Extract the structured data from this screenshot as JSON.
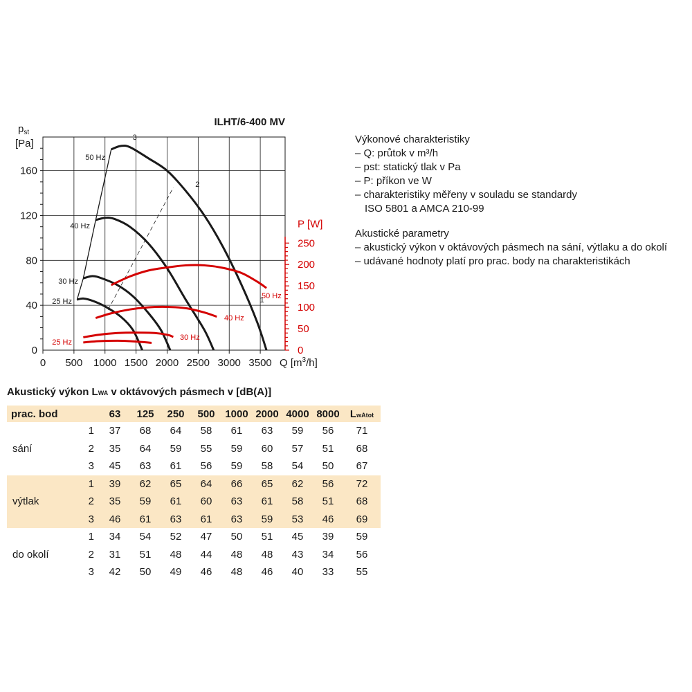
{
  "chart_data": {
    "type": "line",
    "title": "ILHT/6-400 MV",
    "y_left": {
      "label_main": "p",
      "label_sub": "st",
      "unit": "[Pa]",
      "range": [
        0,
        190
      ],
      "ticks": [
        0,
        40,
        80,
        120,
        160
      ]
    },
    "y_right": {
      "label": "P [W]",
      "range": [
        0,
        350
      ],
      "ticks": [
        0,
        50,
        100,
        150,
        200,
        250
      ]
    },
    "x": {
      "label_prefix": "Q [m",
      "label_sup": "3",
      "label_suffix": "/h]",
      "range": [
        0,
        3900
      ],
      "ticks": [
        0,
        500,
        1000,
        1500,
        2000,
        2500,
        3000,
        3500
      ]
    },
    "series": [
      {
        "name": "50 Hz",
        "axis": "left",
        "color": "#1a1a1a",
        "points": [
          [
            1100,
            179
          ],
          [
            1250,
            182
          ],
          [
            1400,
            181
          ],
          [
            1700,
            171
          ],
          [
            2000,
            160
          ],
          [
            2300,
            142
          ],
          [
            2600,
            120
          ],
          [
            2900,
            92
          ],
          [
            3200,
            58
          ],
          [
            3450,
            25
          ],
          [
            3600,
            0
          ]
        ]
      },
      {
        "name": "40 Hz",
        "axis": "left",
        "color": "#1a1a1a",
        "points": [
          [
            850,
            116
          ],
          [
            1000,
            118
          ],
          [
            1150,
            117
          ],
          [
            1400,
            110
          ],
          [
            1700,
            95
          ],
          [
            2000,
            73
          ],
          [
            2300,
            45
          ],
          [
            2600,
            18
          ],
          [
            2750,
            0
          ]
        ]
      },
      {
        "name": "30 Hz",
        "axis": "left",
        "color": "#1a1a1a",
        "points": [
          [
            650,
            64
          ],
          [
            800,
            66
          ],
          [
            950,
            64
          ],
          [
            1200,
            58
          ],
          [
            1450,
            48
          ],
          [
            1700,
            33
          ],
          [
            1900,
            18
          ],
          [
            2050,
            0
          ]
        ]
      },
      {
        "name": "25 Hz",
        "axis": "left",
        "color": "#1a1a1a",
        "points": [
          [
            550,
            45
          ],
          [
            650,
            46
          ],
          [
            800,
            44
          ],
          [
            1000,
            39
          ],
          [
            1250,
            30
          ],
          [
            1450,
            18
          ],
          [
            1600,
            0
          ]
        ]
      },
      {
        "name": "50 Hz",
        "axis": "right",
        "color": "#d40000",
        "points": [
          [
            1100,
            152
          ],
          [
            1400,
            172
          ],
          [
            1700,
            186
          ],
          [
            2000,
            193
          ],
          [
            2300,
            198
          ],
          [
            2600,
            198
          ],
          [
            2900,
            192
          ],
          [
            3200,
            180
          ],
          [
            3450,
            160
          ],
          [
            3600,
            145
          ]
        ]
      },
      {
        "name": "40 Hz",
        "axis": "right",
        "color": "#d40000",
        "points": [
          [
            850,
            75
          ],
          [
            1100,
            86
          ],
          [
            1400,
            95
          ],
          [
            1700,
            100
          ],
          [
            2000,
            101
          ],
          [
            2300,
            98
          ],
          [
            2600,
            88
          ],
          [
            2800,
            78
          ]
        ]
      },
      {
        "name": "30 Hz",
        "axis": "right",
        "color": "#d40000",
        "points": [
          [
            650,
            30
          ],
          [
            900,
            36
          ],
          [
            1200,
            40
          ],
          [
            1500,
            41
          ],
          [
            1800,
            40
          ],
          [
            2000,
            36
          ],
          [
            2100,
            31
          ]
        ]
      },
      {
        "name": "25 Hz",
        "axis": "right",
        "color": "#d40000",
        "points": [
          [
            650,
            18
          ],
          [
            900,
            21
          ],
          [
            1200,
            22
          ],
          [
            1400,
            21
          ],
          [
            1600,
            19
          ],
          [
            1750,
            17
          ]
        ]
      }
    ],
    "envelope": [
      [
        550,
        45
      ],
      [
        650,
        64
      ],
      [
        850,
        116
      ],
      [
        1100,
        179
      ]
    ],
    "operating_lines": [
      {
        "label": "1",
        "points": [
          [
            0,
            0
          ]
        ]
      },
      {
        "label": "2",
        "points": [
          [
            1050,
            36
          ],
          [
            2100,
            145
          ]
        ]
      },
      {
        "label": "3",
        "points": [
          [
            0,
            0
          ]
        ]
      }
    ],
    "point_labels": [
      {
        "text": "1",
        "x": 3450,
        "y": 45
      },
      {
        "text": "2",
        "x": 2410,
        "y": 148
      },
      {
        "text": "3",
        "x": 1400,
        "y": 190
      }
    ]
  },
  "legend": {
    "performance_header": "Výkonové charakteristiky",
    "performance_items": [
      "– Q: průtok v m³/h",
      "– pst: statický tlak v Pa",
      "– P: příkon ve W",
      "– charakteristiky měřeny v souladu se standardy",
      "   ISO 5801 a AMCA 210-99"
    ],
    "acoustic_header": "Akustické parametry",
    "acoustic_items": [
      "– akustický výkon v oktávových pásmech na sání, výtlaku a do okolí",
      "– udávané hodnoty platí pro prac. body na charakteristikách"
    ]
  },
  "table": {
    "title_prefix": "Akustický výkon L",
    "title_sub": "WA",
    "title_suffix": " v oktávových pásmech v [dB(A)]",
    "header_first": "prac. bod",
    "header_bands": [
      "63",
      "125",
      "250",
      "500",
      "1000",
      "2000",
      "4000",
      "8000"
    ],
    "header_total_main": "L",
    "header_total_sub": "wAtot",
    "groups": [
      {
        "name": "sání",
        "rows": [
          {
            "point": "1",
            "values": [
              "37",
              "68",
              "64",
              "58",
              "61",
              "63",
              "59",
              "56"
            ],
            "total": "71"
          },
          {
            "point": "2",
            "values": [
              "35",
              "64",
              "59",
              "55",
              "59",
              "60",
              "57",
              "51"
            ],
            "total": "68"
          },
          {
            "point": "3",
            "values": [
              "45",
              "63",
              "61",
              "56",
              "59",
              "58",
              "54",
              "50"
            ],
            "total": "67"
          }
        ]
      },
      {
        "name": "výtlak",
        "rows": [
          {
            "point": "1",
            "values": [
              "39",
              "62",
              "65",
              "64",
              "66",
              "65",
              "62",
              "56"
            ],
            "total": "72"
          },
          {
            "point": "2",
            "values": [
              "35",
              "59",
              "61",
              "60",
              "63",
              "61",
              "58",
              "51"
            ],
            "total": "68"
          },
          {
            "point": "3",
            "values": [
              "46",
              "61",
              "63",
              "61",
              "63",
              "59",
              "53",
              "46"
            ],
            "total": "69"
          }
        ]
      },
      {
        "name": "do okolí",
        "rows": [
          {
            "point": "1",
            "values": [
              "34",
              "54",
              "52",
              "47",
              "50",
              "51",
              "45",
              "39"
            ],
            "total": "59"
          },
          {
            "point": "2",
            "values": [
              "31",
              "51",
              "48",
              "44",
              "48",
              "48",
              "43",
              "34"
            ],
            "total": "56"
          },
          {
            "point": "3",
            "values": [
              "42",
              "50",
              "49",
              "46",
              "48",
              "46",
              "40",
              "33"
            ],
            "total": "55"
          }
        ]
      }
    ]
  }
}
